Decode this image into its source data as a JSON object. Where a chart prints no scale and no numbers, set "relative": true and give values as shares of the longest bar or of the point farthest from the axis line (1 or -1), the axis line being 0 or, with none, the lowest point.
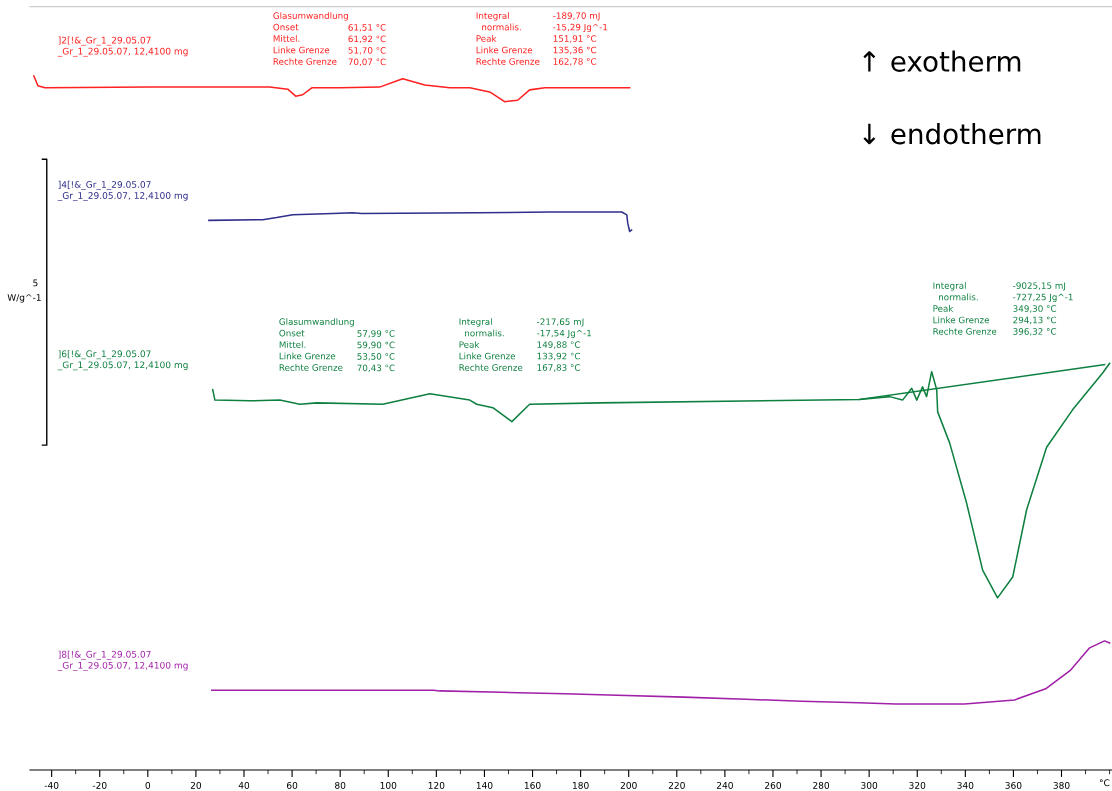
{
  "chart_data": {
    "type": "line",
    "relative": true,
    "xlabel": "°C",
    "xlim": [
      -49,
      401
    ],
    "xticks": [
      -40,
      -20,
      0,
      20,
      40,
      60,
      80,
      100,
      120,
      140,
      160,
      180,
      200,
      220,
      240,
      260,
      280,
      300,
      320,
      340,
      360,
      380
    ],
    "grid": false,
    "marker": "none",
    "line_style": "solid",
    "series": [
      {
        "name": "]2[!&_Gr_1_29.05.07\n_Gr_1_29.05.07, 12,4100 mg",
        "color": "#ff2020",
        "x": [
          -47.4,
          -45.7,
          -42.8,
          0.8,
          50.7,
          58.2,
          61.5,
          64.4,
          68.2,
          79.8,
          96.4,
          106.0,
          115.2,
          125.6,
          133.9,
          142.2,
          148.4,
          153.8,
          158.8,
          165.1,
          200.4
        ],
        "values": [
          1.0,
          0.986,
          0.983,
          0.984,
          0.984,
          0.981,
          0.971,
          0.973,
          0.983,
          0.983,
          0.984,
          0.996,
          0.987,
          0.983,
          0.983,
          0.977,
          0.963,
          0.965,
          0.98,
          0.983,
          0.983
        ]
      },
      {
        "name": "]4[!&_Gr_1_29.05.07\n_Gr_1_29.05.07, 12,4100 mg",
        "color": "#2e2e8c",
        "x": [
          25.4,
          47.8,
          53.6,
          60.3,
          76.9,
          85.2,
          89.0,
          136.8,
          167.2,
          197.1,
          199.2,
          199.6,
          200.4,
          201.2
        ],
        "values": [
          0.792,
          0.793,
          0.796,
          0.8,
          0.802,
          0.803,
          0.802,
          0.803,
          0.804,
          0.804,
          0.8,
          0.788,
          0.776,
          0.778
        ]
      },
      {
        "name": "]6[!&_Gr_1_29.05.07\n_Gr_1_29.05.07, 12,4100 mg",
        "color": "#0e8040",
        "x": [
          27.0,
          27.9,
          42.4,
          54.9,
          63.2,
          70.3,
          97.7,
          117.3,
          133.9,
          136.8,
          143.5,
          151.4,
          158.8,
          187.9,
          296.0,
          308.5,
          313.9,
          317.7,
          319.8,
          322.2,
          323.9,
          326.0,
          328.1,
          328.5,
          333.5,
          340.5,
          347.2,
          353.4,
          359.7,
          365.5,
          373.8,
          384.6,
          397.1,
          400.0
        ],
        "values": [
          0.548,
          0.533,
          0.532,
          0.533,
          0.527,
          0.529,
          0.527,
          0.542,
          0.533,
          0.527,
          0.522,
          0.502,
          0.527,
          0.529,
          0.534,
          0.538,
          0.533,
          0.55,
          0.533,
          0.552,
          0.538,
          0.574,
          0.548,
          0.516,
          0.471,
          0.385,
          0.288,
          0.248,
          0.278,
          0.375,
          0.465,
          0.519,
          0.572,
          0.586
        ]
      },
      {
        "color": "#0e8040",
        "x": [
          296.0,
          397.9
        ],
        "values": [
          0.534,
          0.584
        ]
      },
      {
        "name": "]8[!&_Gr_1_29.05.07\n_Gr_1_29.05.07, 12,4100 mg",
        "color": "#a020a8",
        "x": [
          26.6,
          118.9,
          121.4,
          147.2,
          173.4,
          191.7,
          222.9,
          248.6,
          271.9,
          295.6,
          311.0,
          339.7,
          360.5,
          373.4,
          383.8,
          391.7,
          397.9,
          400.0
        ],
        "values": [
          0.115,
          0.115,
          0.114,
          0.112,
          0.11,
          0.108,
          0.105,
          0.102,
          0.099,
          0.097,
          0.095,
          0.095,
          0.101,
          0.117,
          0.144,
          0.176,
          0.186,
          0.183
        ]
      }
    ],
    "annotations": [
      "Glasumwandlung\nOnset\nMittel.\nLinke Grenze\nRechte Grenze",
      "61,51 °C\n61,92 °C\n51,70 °C\n70,07 °C",
      "Integral\n  normalis.\nPeak\nLinke Grenze\nRechte Grenze",
      "-189,70 mJ\n-15,29 Jg^-1\n151,91 °C\n135,36 °C\n162,78 °C",
      "Glasumwandlung\nOnset\nMittel.\nLinke Grenze\nRechte Grenze",
      "57,99 °C\n59,90 °C\n53,50 °C\n70,43 °C",
      "Integral\n  normalis.\nPeak\nLinke Grenze\nRechte Grenze",
      "-217,65 mJ\n-17,54 Jg^-1\n149,88 °C\n133,92 °C\n167,83 °C",
      "Integral\n  normalis.\nPeak\nLinke Grenze\nRechte Grenze",
      "-9025,15 mJ\n-727,25 Jg^-1\n349,30 °C\n294,13 °C\n396,32 °C",
      "↑ exotherm",
      "↓ endotherm",
      "5",
      "W/g^-1"
    ]
  }
}
